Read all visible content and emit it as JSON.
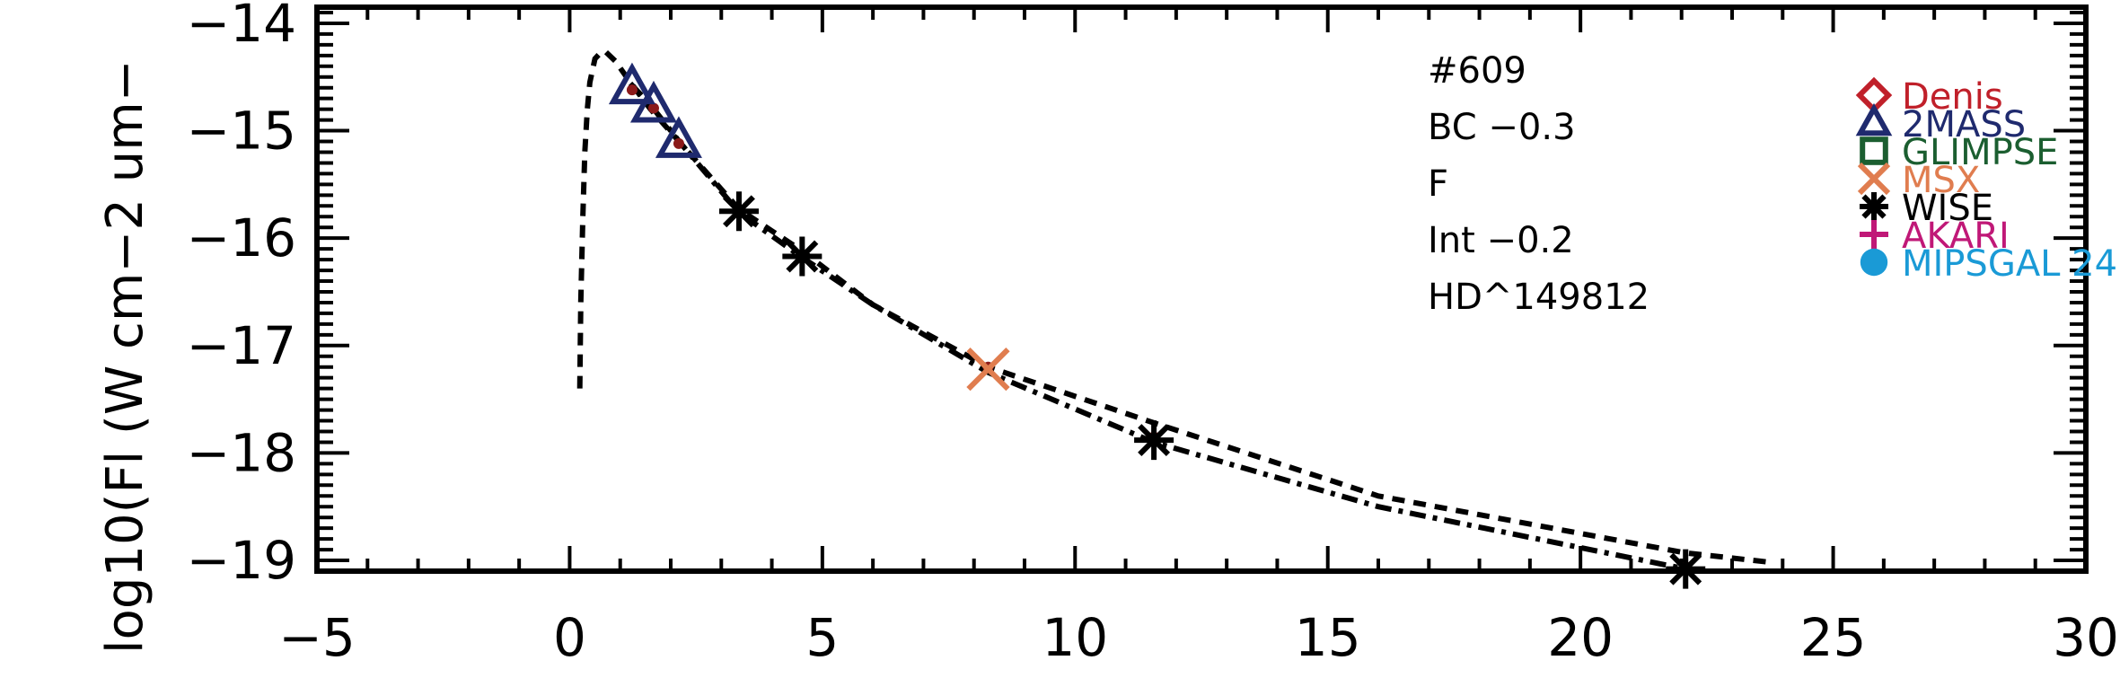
{
  "chart_data": {
    "type": "scatter",
    "title": "",
    "xlabel": "",
    "ylabel": "log10(Fl (W cm−2 um−",
    "xlim": [
      -5,
      30
    ],
    "ylim": [
      -19.1,
      -13.85
    ],
    "x_ticks": [
      -5,
      0,
      5,
      10,
      15,
      20,
      25,
      30
    ],
    "x_tick_labels": [
      "−5",
      "0",
      "5",
      "10",
      "15",
      "20",
      "25",
      "30"
    ],
    "y_ticks": [
      -14,
      -15,
      -16,
      -17,
      -18,
      -19
    ],
    "y_tick_labels": [
      "−14",
      "−15",
      "−16",
      "−17",
      "−18",
      "−19"
    ],
    "annotations": [
      "#609",
      "BC −0.3",
      "F",
      "Int −0.2",
      "HD^149812"
    ],
    "legend_position": "top-right",
    "legend": [
      {
        "name": "Denis",
        "marker": "diamond",
        "color": "#c0202a"
      },
      {
        "name": "2MASS",
        "marker": "triangle",
        "color": "#1f2a6e"
      },
      {
        "name": "GLIMPSE",
        "marker": "square",
        "color": "#1b5e30"
      },
      {
        "name": "MSX",
        "marker": "x",
        "color": "#e07d4f"
      },
      {
        "name": "WISE",
        "marker": "asterisk",
        "color": "#000000"
      },
      {
        "name": "AKARI",
        "marker": "plus",
        "color": "#c01877"
      },
      {
        "name": "MIPSGAL 24",
        "marker": "circle",
        "color": "#1a9ad6"
      }
    ],
    "series": [
      {
        "name": "2MASS",
        "marker": "triangle",
        "color": "#1f2a6e",
        "x": [
          1.235,
          1.662,
          2.159
        ],
        "y": [
          -14.6,
          -14.77,
          -15.1
        ]
      },
      {
        "name": "WISE",
        "marker": "asterisk",
        "color": "#000000",
        "x": [
          3.35,
          4.6,
          11.56,
          22.08
        ],
        "y": [
          -15.75,
          -16.17,
          -17.88,
          -19.08
        ]
      },
      {
        "name": "MSX",
        "marker": "x",
        "color": "#e07d4f",
        "x": [
          8.28
        ],
        "y": [
          -17.22
        ]
      }
    ],
    "model_points": {
      "color": "#8b1a1a",
      "x": [
        1.235,
        1.662,
        2.159,
        3.35,
        4.6,
        8.28,
        11.56,
        22.08
      ],
      "y": [
        -14.62,
        -14.79,
        -15.12,
        -15.75,
        -16.15,
        -17.2,
        -17.85,
        -19.06
      ]
    },
    "curves": [
      {
        "style": "dashed",
        "color": "#000000",
        "x": [
          0.2,
          0.22,
          0.26,
          0.3,
          0.35,
          0.4,
          0.5,
          0.6,
          0.7,
          0.9,
          1.2,
          1.6,
          2.2,
          3.35,
          4.6,
          6.0,
          8.28,
          11.56,
          16.0,
          22.08,
          23.8
        ],
        "y": [
          -17.4,
          -16.6,
          -15.8,
          -15.2,
          -14.8,
          -14.55,
          -14.33,
          -14.28,
          -14.26,
          -14.35,
          -14.55,
          -14.8,
          -15.12,
          -15.73,
          -16.12,
          -16.62,
          -17.2,
          -17.72,
          -18.4,
          -18.93,
          -19.02
        ]
      },
      {
        "style": "dash-dot",
        "color": "#000000",
        "x": [
          1.2,
          1.6,
          2.2,
          3.35,
          4.6,
          6.0,
          8.28,
          11.56,
          16.0,
          22.08
        ],
        "y": [
          -14.56,
          -14.76,
          -15.12,
          -15.76,
          -16.18,
          -16.62,
          -17.25,
          -17.9,
          -18.5,
          -19.08
        ]
      }
    ]
  }
}
